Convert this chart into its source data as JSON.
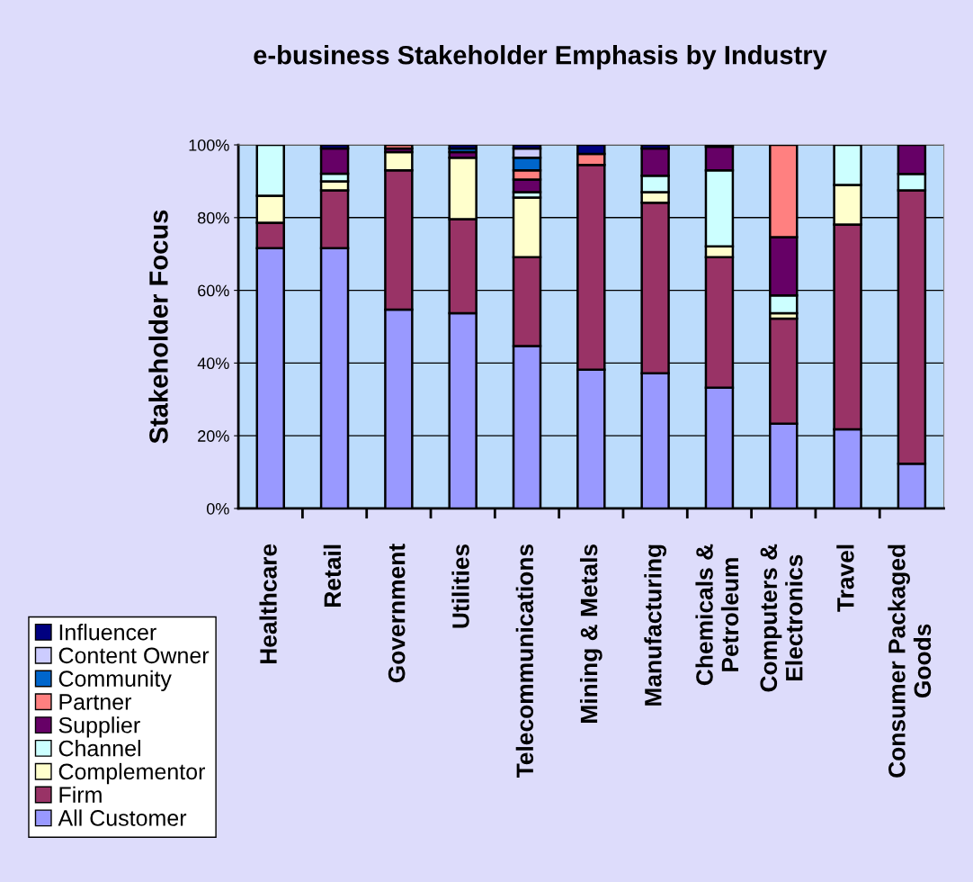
{
  "chart_data": {
    "type": "bar",
    "stacked": true,
    "title": "e-business Stakeholder Emphasis by Industry",
    "ylabel": "Stakeholder Focus",
    "categories": [
      "Healthcare",
      "Retail",
      "Government",
      "Utilities",
      "Telecommunications",
      "Mining & Metals",
      "Manufacturing",
      "Chemicals &\nPetroleum",
      "Computers &\nElectronics",
      "Travel",
      "Consumer Packaged\nGoods"
    ],
    "series": [
      {
        "name": "All Customer",
        "color": "#9999ff",
        "values": [
          71.6,
          71.6,
          54.7,
          53.7,
          44.7,
          38.2,
          37.2,
          33.2,
          23.3,
          21.8,
          12.3
        ]
      },
      {
        "name": "Firm",
        "color": "#993366",
        "values": [
          7.0,
          15.9,
          38.3,
          25.9,
          24.4,
          56.3,
          46.9,
          35.9,
          28.9,
          56.3,
          75.2
        ]
      },
      {
        "name": "Complementor",
        "color": "#ffffcc",
        "values": [
          7.4,
          2.5,
          5.0,
          16.9,
          16.4,
          null,
          2.9,
          3.0,
          1.5,
          10.9,
          null
        ]
      },
      {
        "name": "Channel",
        "color": "#ccffff",
        "values": [
          14.0,
          2.1,
          null,
          null,
          1.5,
          null,
          4.5,
          20.9,
          4.9,
          11.0,
          4.5
        ]
      },
      {
        "name": "Supplier",
        "color": "#660066",
        "values": [
          null,
          6.9,
          1.0,
          1.5,
          3.5,
          null,
          7.5,
          6.5,
          16.0,
          null,
          8.0
        ]
      },
      {
        "name": "Partner",
        "color": "#ff8080",
        "values": [
          null,
          null,
          1.0,
          null,
          2.5,
          3.0,
          null,
          null,
          25.4,
          null,
          null
        ]
      },
      {
        "name": "Community",
        "color": "#0066cc",
        "values": [
          null,
          null,
          null,
          1.0,
          3.5,
          null,
          null,
          null,
          null,
          null,
          null
        ]
      },
      {
        "name": "Content Owner",
        "color": "#ccccff",
        "values": [
          null,
          null,
          null,
          null,
          2.5,
          null,
          null,
          null,
          null,
          null,
          null
        ]
      },
      {
        "name": "Influencer",
        "color": "#000080",
        "values": [
          null,
          1.0,
          null,
          1.0,
          1.0,
          2.5,
          1.0,
          0.5,
          null,
          null,
          null
        ]
      }
    ],
    "ylim": [
      0,
      100
    ],
    "yticks": [
      {
        "value": 0,
        "label": "0%"
      },
      {
        "value": 20,
        "label": "20%"
      },
      {
        "value": 40,
        "label": "40%"
      },
      {
        "value": 60,
        "label": "60%"
      },
      {
        "value": 80,
        "label": "80%"
      },
      {
        "value": 100,
        "label": "100%"
      }
    ],
    "grid": "y",
    "legend": "bottom left"
  }
}
